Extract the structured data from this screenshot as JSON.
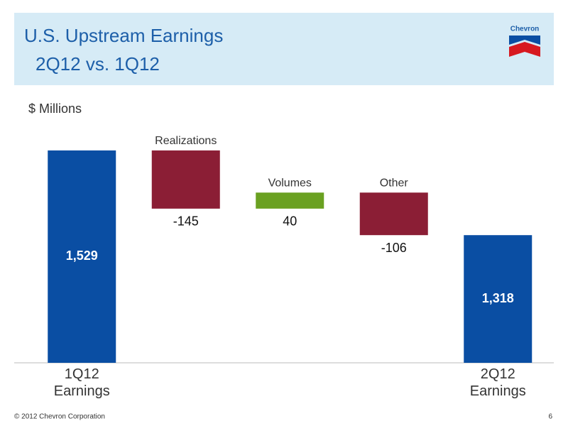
{
  "chart_data": {
    "type": "waterfall",
    "title": "U.S. Upstream Earnings",
    "subtitle": "2Q12 vs. 1Q12",
    "ylabel": "$ Millions",
    "categories": [
      "1Q12 Earnings",
      "Realizations",
      "Volumes",
      "Other",
      "2Q12 Earnings"
    ],
    "values": [
      1529,
      -145,
      40,
      -106,
      1318
    ],
    "value_labels": [
      "1,529",
      "-145",
      "40",
      "-106",
      "1,318"
    ],
    "colors": {
      "total": "#0a4ea3",
      "increase": "#6aa121",
      "decrease": "#8b1e35"
    },
    "ylim": [
      1000,
      1550
    ]
  },
  "logo": "Chevron",
  "footer": {
    "copyright": "© 2012 Chevron Corporation",
    "page": 6
  }
}
